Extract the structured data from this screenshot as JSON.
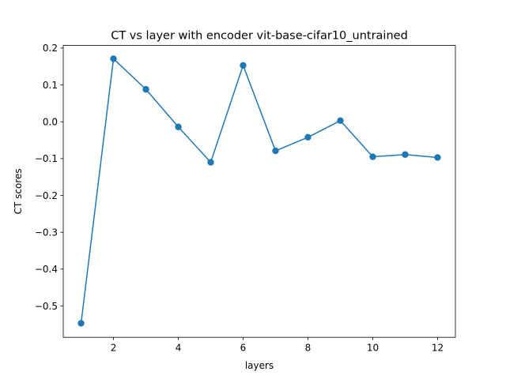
{
  "chart_data": {
    "type": "line",
    "title": "CT vs layer with encoder vit-base-cifar10_untrained",
    "xlabel": "layers",
    "ylabel": "CT scores",
    "xlim": [
      0.45,
      12.55
    ],
    "ylim": [
      -0.585,
      0.207
    ],
    "xticks": [
      2,
      4,
      6,
      8,
      10,
      12
    ],
    "xtick_labels": [
      "2",
      "4",
      "6",
      "8",
      "10",
      "12"
    ],
    "yticks": [
      0.2,
      0.1,
      0.0,
      -0.1,
      -0.2,
      -0.3,
      -0.4,
      -0.5
    ],
    "ytick_labels": [
      "0.2",
      "0.1",
      "0.0",
      "−0.1",
      "−0.2",
      "−0.3",
      "−0.4",
      "−0.5"
    ],
    "grid": false,
    "series": [
      {
        "color": "#1f77b4",
        "marker": "circle",
        "x": [
          1,
          2,
          3,
          4,
          5,
          6,
          7,
          8,
          9,
          10,
          11,
          12
        ],
        "y": [
          -0.547,
          0.171,
          0.088,
          -0.014,
          -0.11,
          0.153,
          -0.079,
          -0.042,
          0.003,
          -0.095,
          -0.089,
          -0.097
        ]
      }
    ]
  }
}
